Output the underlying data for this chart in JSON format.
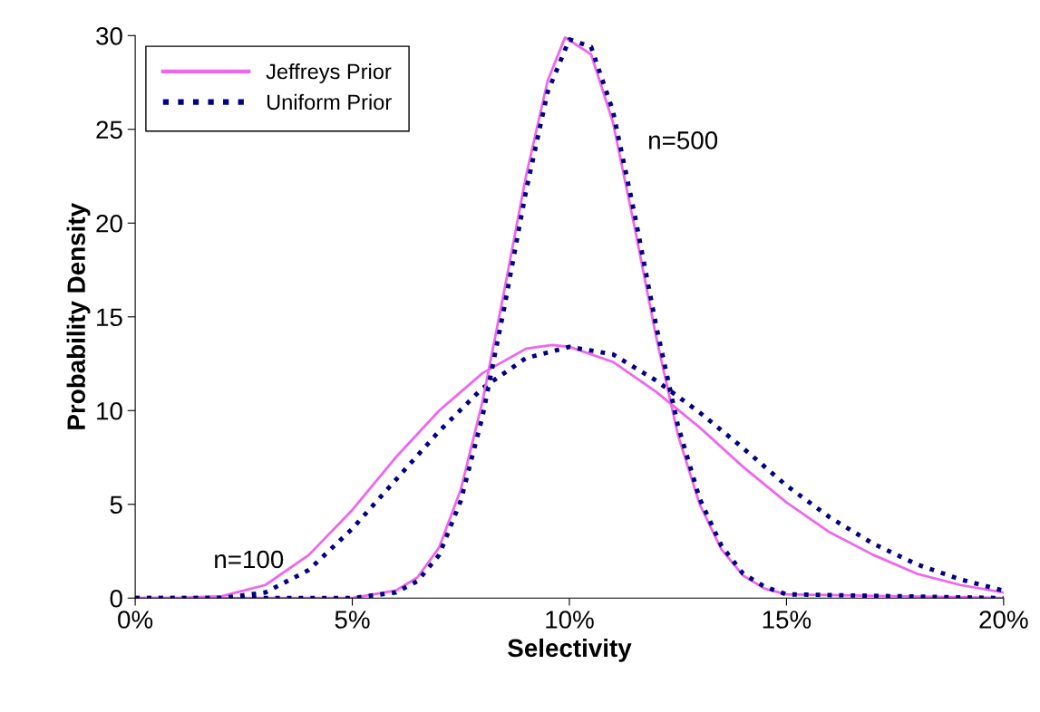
{
  "chart_data": {
    "type": "line",
    "xlabel": "Selectivity",
    "ylabel": "Probability Density",
    "xlim": [
      0,
      20
    ],
    "xticks": [
      {
        "value": 0,
        "label": "0%"
      },
      {
        "value": 5,
        "label": "5%"
      },
      {
        "value": 10,
        "label": "10%"
      },
      {
        "value": 15,
        "label": "15%"
      },
      {
        "value": 20,
        "label": "20%"
      }
    ],
    "ylim": [
      0,
      30
    ],
    "yticks": [
      0,
      5,
      10,
      15,
      20,
      25,
      30
    ],
    "grid": false,
    "legend": "top left",
    "marker": "none",
    "series": [
      {
        "name": "Jeffreys Prior",
        "color": "#ee66ee",
        "line_style": "solid",
        "x": [
          0,
          1,
          2,
          3,
          4,
          5,
          6,
          7,
          8,
          9,
          9.6,
          10,
          11,
          12,
          13,
          14,
          15,
          16,
          17,
          18,
          19,
          20
        ],
        "values": [
          0,
          0,
          0.1,
          0.7,
          2.3,
          4.7,
          7.5,
          10.0,
          12.0,
          13.3,
          13.5,
          13.4,
          12.6,
          11.0,
          9.1,
          7.0,
          5.1,
          3.5,
          2.3,
          1.3,
          0.7,
          0.3
        ]
      },
      {
        "name": "Uniform Prior",
        "color": "#000080",
        "line_style": "dotted",
        "x": [
          0,
          1,
          2,
          3,
          4,
          5,
          6,
          7,
          8,
          9,
          10,
          11,
          12,
          13,
          14,
          15,
          16,
          17,
          18,
          19,
          20
        ],
        "values": [
          0,
          0,
          0,
          0.3,
          1.5,
          3.7,
          6.3,
          8.9,
          11.2,
          12.8,
          13.4,
          13.0,
          11.6,
          9.9,
          8.0,
          6.0,
          4.3,
          2.9,
          1.8,
          1.0,
          0.4
        ]
      },
      {
        "color": "#ee66ee",
        "line_style": "solid",
        "x": [
          0,
          5,
          6,
          6.5,
          7,
          7.5,
          8,
          8.5,
          9,
          9.5,
          9.9,
          10.5,
          11,
          11.5,
          12,
          12.5,
          13,
          13.5,
          14,
          14.5,
          15,
          20
        ],
        "values": [
          0,
          0,
          0.4,
          1.1,
          2.7,
          5.8,
          10.5,
          16.4,
          22.5,
          27.6,
          29.9,
          29.0,
          25.4,
          19.8,
          13.9,
          8.7,
          5.0,
          2.6,
          1.2,
          0.5,
          0.2,
          0
        ]
      },
      {
        "color": "#000080",
        "line_style": "dotted",
        "x": [
          0,
          5,
          6,
          6.5,
          7,
          7.5,
          8,
          8.5,
          9,
          9.5,
          10,
          10.5,
          11,
          11.5,
          12,
          12.5,
          13,
          13.5,
          14,
          14.5,
          15,
          20
        ],
        "values": [
          0,
          0,
          0.3,
          0.9,
          2.3,
          5.2,
          9.7,
          15.5,
          21.7,
          27.0,
          29.8,
          29.4,
          26.0,
          20.5,
          14.5,
          9.2,
          5.3,
          2.8,
          1.3,
          0.6,
          0.2,
          0
        ]
      }
    ],
    "annotations": [
      "n=500",
      "n=100"
    ]
  }
}
